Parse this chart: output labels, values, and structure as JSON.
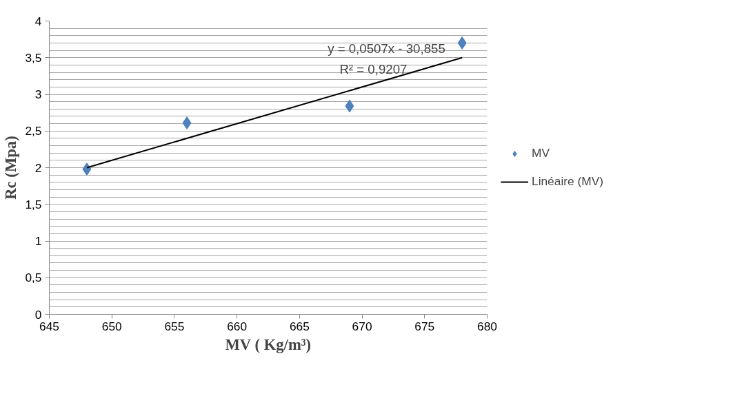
{
  "chart_data": {
    "type": "scatter",
    "xlabel": "MV ( Kg/m³)",
    "ylabel": "Rc (Mpa)",
    "xlim": [
      645,
      680
    ],
    "xticks": [
      645,
      650,
      655,
      660,
      665,
      670,
      675,
      680
    ],
    "ylim": [
      0,
      4
    ],
    "yticks": [
      {
        "value": 0,
        "label": "0"
      },
      {
        "value": 0.1,
        "label": null
      },
      {
        "value": 0.2,
        "label": null
      },
      {
        "value": 0.3,
        "label": null
      },
      {
        "value": 0.4,
        "label": null
      },
      {
        "value": 0.5,
        "label": "0,5"
      },
      {
        "value": 0.6,
        "label": null
      },
      {
        "value": 0.7,
        "label": null
      },
      {
        "value": 0.8,
        "label": null
      },
      {
        "value": 0.9,
        "label": null
      },
      {
        "value": 1,
        "label": "1"
      },
      {
        "value": 1.1,
        "label": null
      },
      {
        "value": 1.2,
        "label": null
      },
      {
        "value": 1.3,
        "label": null
      },
      {
        "value": 1.4,
        "label": null
      },
      {
        "value": 1.5,
        "label": "1,5"
      },
      {
        "value": 1.6,
        "label": null
      },
      {
        "value": 1.7,
        "label": null
      },
      {
        "value": 1.8,
        "label": null
      },
      {
        "value": 1.9,
        "label": null
      },
      {
        "value": 2,
        "label": "2"
      },
      {
        "value": 2.1,
        "label": null
      },
      {
        "value": 2.2,
        "label": null
      },
      {
        "value": 2.3,
        "label": null
      },
      {
        "value": 2.4,
        "label": null
      },
      {
        "value": 2.5,
        "label": "2,5"
      },
      {
        "value": 2.6,
        "label": null
      },
      {
        "value": 2.7,
        "label": null
      },
      {
        "value": 2.8,
        "label": null
      },
      {
        "value": 2.9,
        "label": null
      },
      {
        "value": 3,
        "label": "3"
      },
      {
        "value": 3.1,
        "label": null
      },
      {
        "value": 3.2,
        "label": null
      },
      {
        "value": 3.3,
        "label": null
      },
      {
        "value": 3.4,
        "label": null
      },
      {
        "value": 3.5,
        "label": "3,5"
      },
      {
        "value": 3.6,
        "label": null
      },
      {
        "value": 3.7,
        "label": null
      },
      {
        "value": 3.8,
        "label": null
      },
      {
        "value": 3.9,
        "label": null
      },
      {
        "value": 4,
        "label": "4"
      }
    ],
    "grid": "y",
    "legend": "right",
    "marker": "diamond",
    "series": [
      {
        "name": "MV",
        "color": "#4f81bd",
        "x": [
          648,
          656,
          669,
          678
        ],
        "values": [
          1.98,
          2.61,
          2.84,
          3.7
        ]
      },
      {
        "name": "Linéaire (MV)",
        "type": "line",
        "color": "#000000",
        "line_style": "solid",
        "marker": "none",
        "x": [
          648,
          678
        ],
        "values": [
          2.0,
          3.5
        ]
      }
    ],
    "annotations": [
      "y = 0,0507x - 30,855",
      "R² = 0,9207"
    ]
  }
}
